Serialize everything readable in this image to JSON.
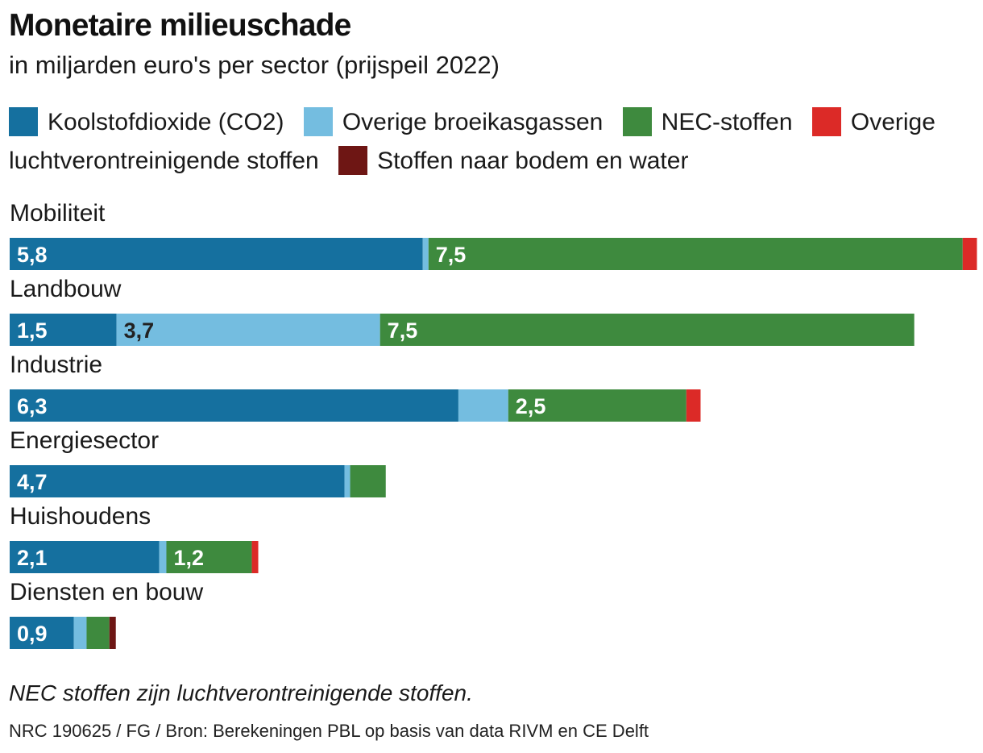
{
  "title": "Monetaire milieuschade",
  "subtitle": "in miljarden euro's per sector (prijspeil 2022)",
  "legend": [
    {
      "label": "Koolstofdioxide (CO2)",
      "color": "#15709f"
    },
    {
      "label": "Overige broeikasgassen",
      "color": "#74bde0"
    },
    {
      "label": "NEC-stoffen",
      "color": "#3e8a3e"
    },
    {
      "label": "Overige luchtverontreinigende stoffen",
      "color": "#dc2a27"
    },
    {
      "label": "Stoffen naar bodem en water",
      "color": "#6e1614"
    }
  ],
  "note": "NEC stoffen zijn luchtverontreinigende stoffen.",
  "source": "NRC 190625 / FG / Bron: Berekeningen PBL op basis van data RIVM en CE Delft",
  "chart_data": {
    "type": "bar",
    "orientation": "horizontal",
    "stacked": true,
    "title": "Monetaire milieuschade",
    "subtitle": "in miljarden euro's per sector (prijspeil 2022)",
    "unit": "miljarden euro",
    "legend_position": "top",
    "grid": false,
    "categories": [
      "Mobiliteit",
      "Landbouw",
      "Industrie",
      "Energiesector",
      "Huishoudens",
      "Diensten en bouw"
    ],
    "series": [
      {
        "name": "Koolstofdioxide (CO2)",
        "color": "#15709f",
        "values": [
          5.8,
          1.5,
          6.3,
          4.7,
          2.1,
          0.9
        ],
        "labels": [
          "5,8",
          "1,5",
          "6,3",
          "4,7",
          "2,1",
          "0,9"
        ],
        "label_color": "#ffffff"
      },
      {
        "name": "Overige broeikasgassen",
        "color": "#74bde0",
        "values": [
          0.08,
          3.7,
          0.7,
          0.08,
          0.1,
          0.18
        ],
        "labels": [
          "",
          "3,7",
          "",
          "",
          "",
          ""
        ],
        "label_color": "#222222"
      },
      {
        "name": "NEC-stoffen",
        "color": "#3e8a3e",
        "values": [
          7.5,
          7.5,
          2.5,
          0.5,
          1.2,
          0.32
        ],
        "labels": [
          "7,5",
          "7,5",
          "2,5",
          "",
          "1,2",
          ""
        ],
        "label_color": "#ffffff"
      },
      {
        "name": "Overige luchtverontreinigende stoffen",
        "color": "#dc2a27",
        "values": [
          0.2,
          0,
          0.2,
          0,
          0.09,
          0
        ],
        "labels": [
          "",
          "",
          "",
          "",
          "",
          ""
        ],
        "label_color": "#ffffff"
      },
      {
        "name": "Stoffen naar bodem en water",
        "color": "#6e1614",
        "values": [
          0,
          0,
          0,
          0,
          0,
          0.09
        ],
        "labels": [
          "",
          "",
          "",
          "",
          "",
          ""
        ],
        "label_color": "#ffffff"
      }
    ]
  }
}
